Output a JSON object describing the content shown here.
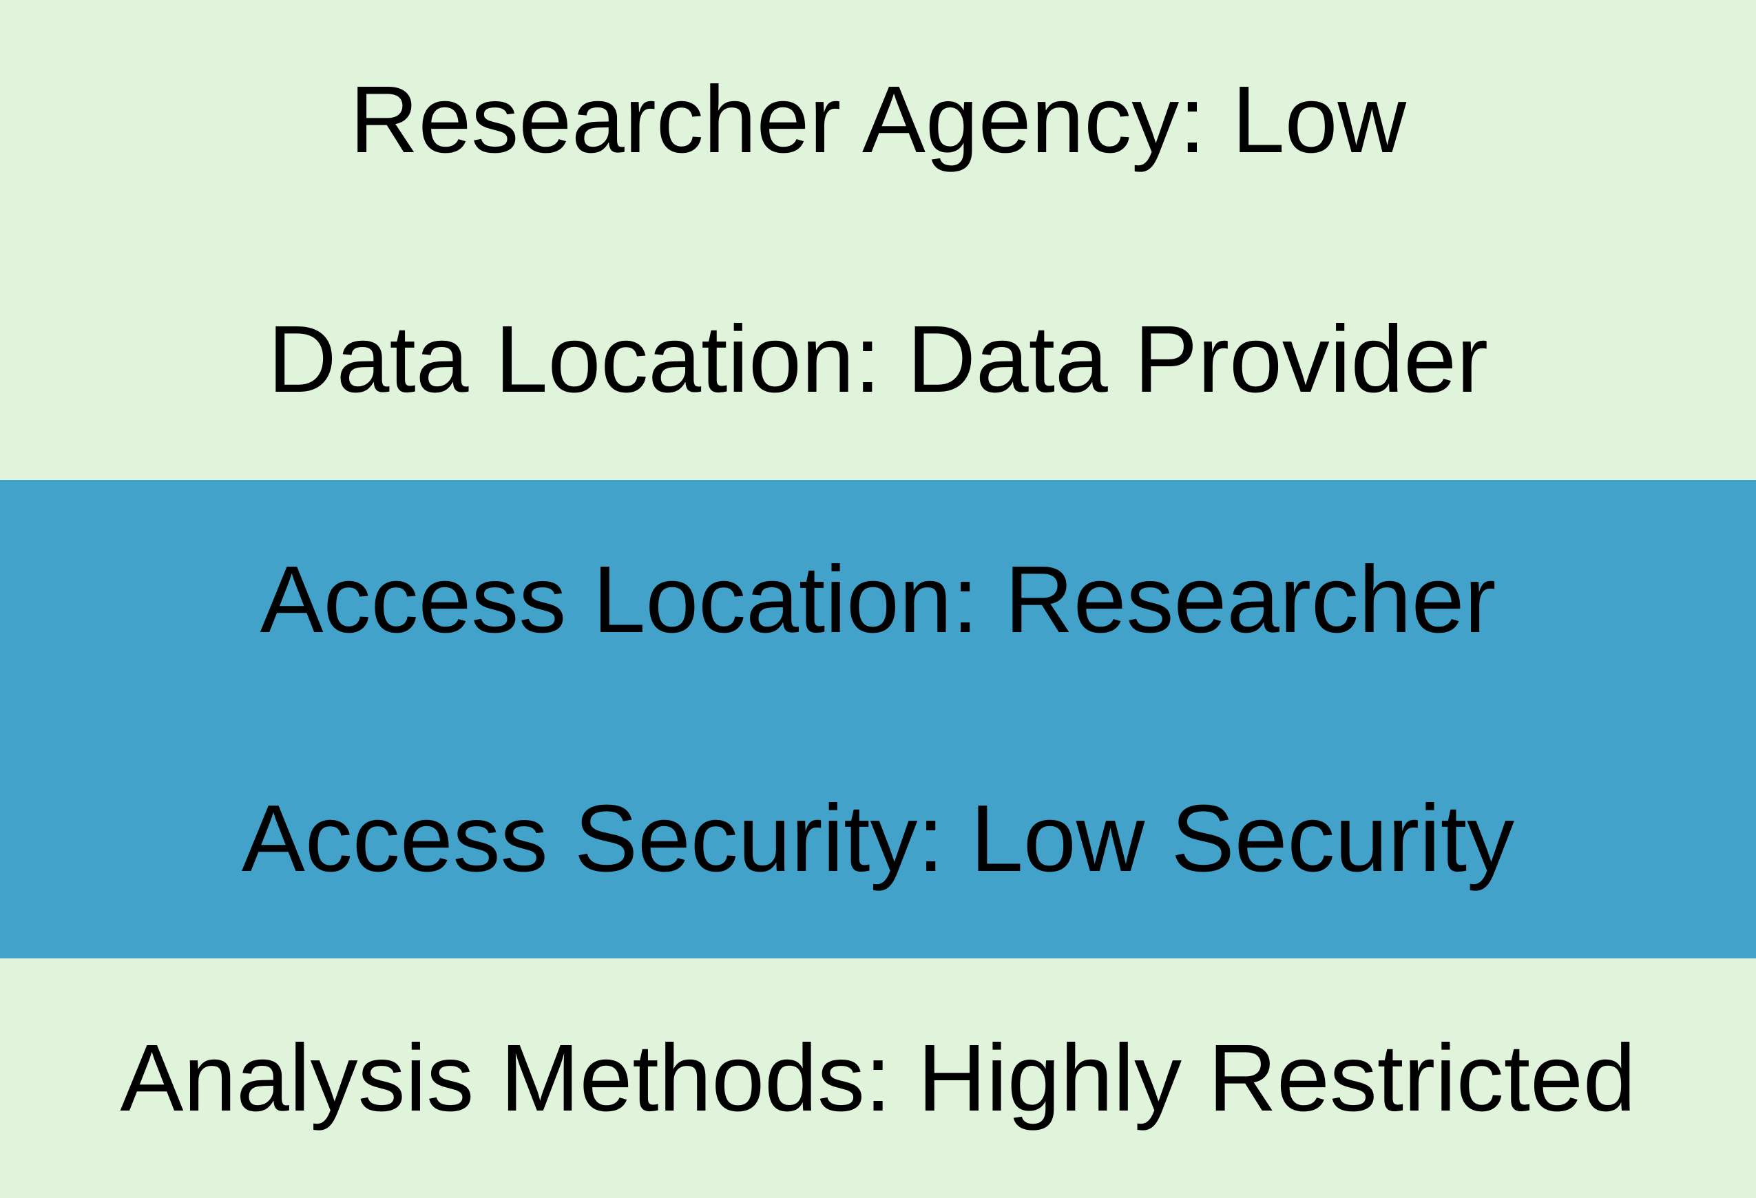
{
  "colors": {
    "light_band": "#e0f3db",
    "highlight_band": "#43a2ca",
    "text": "#000000"
  },
  "rows": [
    {
      "label": "Researcher Agency: Low",
      "highlighted": false
    },
    {
      "label": "Data Location: Data Provider",
      "highlighted": false
    },
    {
      "label": "Access Location: Researcher",
      "highlighted": true
    },
    {
      "label": "Access Security: Low Security",
      "highlighted": true
    },
    {
      "label": "Analysis Methods: Highly Restricted",
      "highlighted": false
    }
  ]
}
